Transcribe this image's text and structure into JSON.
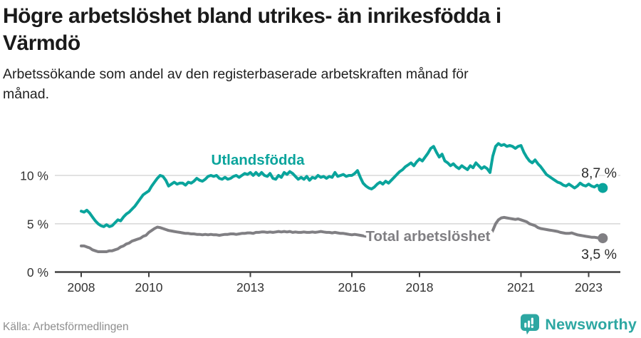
{
  "header": {
    "title_lines": [
      "Högre arbetslöshet bland utrikes- än inrikesfödda i",
      "Värmdö"
    ],
    "subtitle_lines": [
      "Arbetssökande som andel av den registerbaserade arbetskraften månad för",
      "månad."
    ]
  },
  "footer": {
    "source": "Källa: Arbetsförmedlingen",
    "brand": "Newsworthy"
  },
  "colors": {
    "series_foreign": "#0aa49c",
    "series_total": "#807f83",
    "grid": "#d9d9d9",
    "axis": "#404040",
    "tick_text": "#333333",
    "value_text": "#2b2b2b",
    "brand": "#2da7a2"
  },
  "chart_data": {
    "type": "line",
    "title": "Högre arbetslöshet bland utrikes- än inrikesfödda i Värmdö",
    "subtitle": "Arbetssökande som andel av den registerbaserade arbetskraften månad för månad.",
    "frequency": "monthly",
    "x_start": "2008-01",
    "x_end": "2023-06",
    "xlabel": "",
    "ylabel": "",
    "ylim": [
      0,
      16
    ],
    "grid": "horizontal",
    "legend_position": "inline-labels",
    "y_ticks": [
      {
        "v": 0,
        "label": "0 %"
      },
      {
        "v": 5,
        "label": "5 %"
      },
      {
        "v": 10,
        "label": "10 %"
      }
    ],
    "x_ticks": [
      {
        "year": 2008,
        "label": "2008"
      },
      {
        "year": 2010,
        "label": "2010"
      },
      {
        "year": 2013,
        "label": "2013"
      },
      {
        "year": 2016,
        "label": "2016"
      },
      {
        "year": 2018,
        "label": "2018"
      },
      {
        "year": 2021,
        "label": "2021"
      },
      {
        "year": 2023,
        "label": "2023"
      }
    ],
    "series": [
      {
        "name": "Utlandsfödda",
        "color": "#0aa49c",
        "end_label": "8,7 %",
        "end_value": 8.7,
        "values": [
          6.3,
          6.2,
          6.4,
          6.1,
          5.7,
          5.3,
          5.0,
          4.8,
          4.7,
          4.9,
          4.7,
          4.8,
          5.1,
          5.4,
          5.3,
          5.7,
          6.0,
          6.2,
          6.5,
          6.8,
          7.2,
          7.6,
          8.0,
          8.2,
          8.4,
          8.9,
          9.3,
          9.7,
          10.0,
          9.9,
          9.5,
          8.9,
          9.1,
          9.3,
          9.1,
          9.2,
          9.2,
          9.0,
          9.3,
          9.2,
          9.4,
          9.7,
          9.5,
          9.4,
          9.6,
          9.9,
          10.0,
          9.9,
          10.0,
          9.7,
          9.6,
          9.8,
          9.6,
          9.7,
          9.9,
          10.0,
          9.8,
          10.0,
          10.2,
          10.1,
          10.3,
          10.0,
          10.3,
          10.0,
          10.3,
          10.0,
          9.9,
          10.2,
          9.7,
          9.6,
          10.0,
          9.8,
          10.3,
          10.1,
          10.4,
          10.2,
          9.9,
          9.6,
          9.8,
          9.6,
          9.9,
          9.5,
          9.8,
          9.7,
          10.0,
          9.8,
          9.9,
          9.7,
          9.9,
          9.8,
          10.3,
          9.9,
          10.0,
          10.1,
          9.9,
          10.0,
          10.0,
          10.2,
          10.5,
          9.8,
          9.2,
          8.9,
          8.7,
          8.6,
          8.8,
          9.1,
          9.3,
          9.1,
          9.4,
          9.2,
          9.5,
          9.8,
          10.1,
          10.4,
          10.6,
          10.9,
          11.1,
          11.3,
          11.0,
          11.4,
          11.7,
          11.5,
          11.9,
          12.3,
          12.8,
          13.0,
          12.4,
          11.9,
          12.2,
          11.5,
          11.3,
          11.0,
          11.2,
          10.9,
          10.7,
          11.0,
          10.8,
          10.6,
          11.0,
          10.8,
          11.3,
          11.0,
          10.7,
          10.9,
          10.7,
          10.3,
          12.0,
          13.0,
          13.3,
          13.1,
          13.2,
          13.0,
          13.1,
          13.0,
          12.8,
          13.0,
          13.1,
          12.4,
          11.9,
          11.5,
          11.3,
          11.6,
          11.2,
          10.9,
          10.5,
          10.1,
          9.9,
          9.7,
          9.5,
          9.3,
          9.2,
          9.0,
          8.9,
          9.1,
          8.9,
          8.7,
          8.9,
          9.2,
          9.0,
          8.9,
          9.1,
          8.9,
          8.8,
          9.0,
          8.8,
          8.7
        ]
      },
      {
        "name": "Total arbetslöshet",
        "color": "#807f83",
        "end_label": "3,5 %",
        "end_value": 3.5,
        "values": [
          2.7,
          2.7,
          2.6,
          2.5,
          2.3,
          2.2,
          2.1,
          2.1,
          2.1,
          2.1,
          2.2,
          2.2,
          2.3,
          2.4,
          2.6,
          2.7,
          2.9,
          3.0,
          3.2,
          3.3,
          3.4,
          3.5,
          3.7,
          3.8,
          4.1,
          4.3,
          4.5,
          4.65,
          4.6,
          4.5,
          4.4,
          4.3,
          4.25,
          4.2,
          4.15,
          4.1,
          4.05,
          4.0,
          4.0,
          3.95,
          3.95,
          3.9,
          3.9,
          3.85,
          3.9,
          3.85,
          3.9,
          3.85,
          3.85,
          3.8,
          3.85,
          3.9,
          3.9,
          3.95,
          3.95,
          3.9,
          3.95,
          4.0,
          4.0,
          4.05,
          4.05,
          4.0,
          4.1,
          4.1,
          4.15,
          4.15,
          4.1,
          4.15,
          4.1,
          4.15,
          4.2,
          4.15,
          4.2,
          4.15,
          4.2,
          4.1,
          4.15,
          4.1,
          4.1,
          4.15,
          4.1,
          4.1,
          4.15,
          4.1,
          4.15,
          4.2,
          4.15,
          4.1,
          4.1,
          4.05,
          4.1,
          4.05,
          4.0,
          4.0,
          3.95,
          3.9,
          3.85,
          3.9,
          3.85,
          3.8,
          3.75,
          3.7,
          3.75,
          3.7,
          3.65,
          3.6,
          3.65,
          3.6,
          3.6,
          3.55,
          3.6,
          3.5,
          3.55,
          3.5,
          3.45,
          3.5,
          3.45,
          3.4,
          3.45,
          3.4,
          3.45,
          3.4,
          3.35,
          3.4,
          3.35,
          3.3,
          3.35,
          3.3,
          3.35,
          3.3,
          3.35,
          3.3,
          3.35,
          3.3,
          3.35,
          3.3,
          3.35,
          3.4,
          3.35,
          3.4,
          3.45,
          3.4,
          3.5,
          3.55,
          3.7,
          3.8,
          4.3,
          5.0,
          5.4,
          5.6,
          5.65,
          5.6,
          5.55,
          5.5,
          5.45,
          5.5,
          5.4,
          5.3,
          5.2,
          5.0,
          4.9,
          4.8,
          4.6,
          4.5,
          4.45,
          4.4,
          4.35,
          4.3,
          4.25,
          4.2,
          4.1,
          4.05,
          4.0,
          4.0,
          4.05,
          3.95,
          3.85,
          3.8,
          3.75,
          3.7,
          3.65,
          3.6,
          3.6,
          3.55,
          3.5,
          3.5
        ]
      }
    ]
  }
}
